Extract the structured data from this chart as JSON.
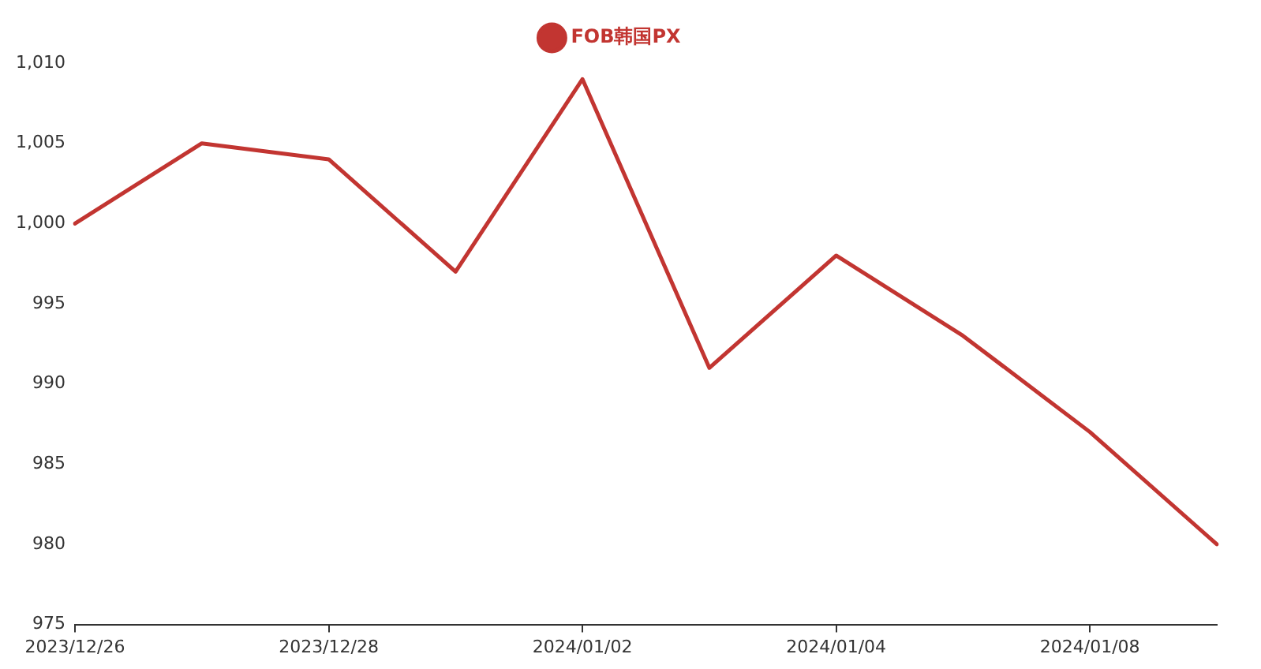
{
  "chart_data": {
    "type": "line",
    "categories": [
      "2023/12/26",
      null,
      "2023/12/28",
      null,
      "2024/01/02",
      null,
      "2024/01/04",
      null,
      "2024/01/08",
      null
    ],
    "series": [
      {
        "name": "FOB韩国PX",
        "color": "#c23531",
        "values": [
          1000,
          1005,
          1004,
          997,
          1009,
          991,
          998,
          993,
          987,
          980
        ]
      }
    ],
    "ylim": [
      975,
      1010
    ],
    "yticks": [
      975,
      980,
      985,
      990,
      995,
      {
        "value": 1000,
        "label": "1,000"
      },
      {
        "value": 1005,
        "label": "1,005"
      },
      {
        "value": 1010,
        "label": "1,010"
      }
    ],
    "grid": false,
    "legend": "top",
    "marker": "none",
    "line_style": "solid"
  }
}
